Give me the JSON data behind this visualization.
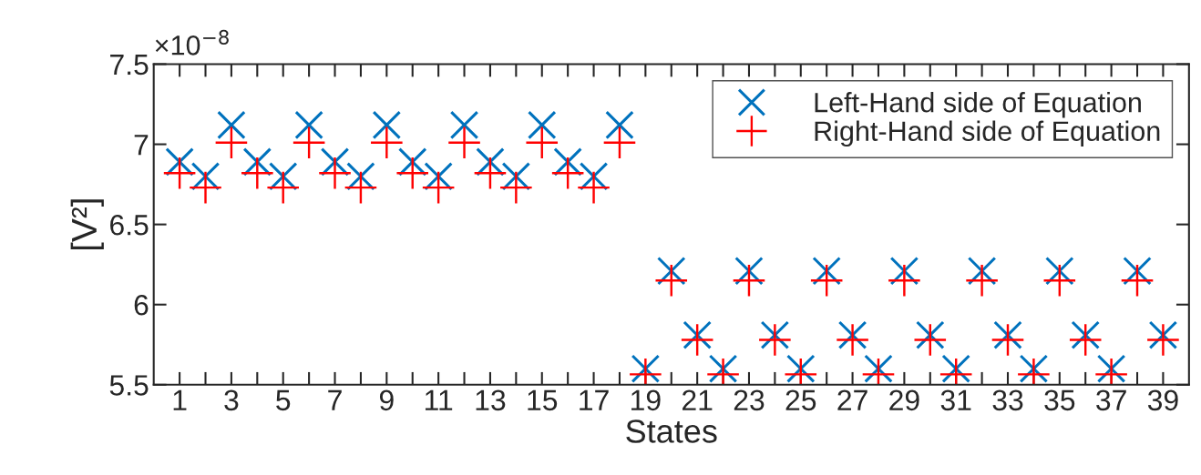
{
  "chart_data": {
    "type": "scatter",
    "xlabel": "States",
    "ylabel": "[V²]",
    "annotations": [
      "×10$^{−8}$"
    ],
    "x": [
      1,
      2,
      3,
      4,
      5,
      6,
      7,
      8,
      9,
      10,
      11,
      12,
      13,
      14,
      15,
      16,
      17,
      18,
      19,
      20,
      21,
      22,
      23,
      24,
      25,
      26,
      27,
      28,
      29,
      30,
      31,
      32,
      33,
      34,
      35,
      36,
      37,
      38,
      39
    ],
    "series": [
      {
        "name": "Left-Hand side of Equation",
        "color": "#0072bd",
        "marker": "cross",
        "values": [
          6.89,
          6.8,
          7.12,
          6.89,
          6.8,
          7.12,
          6.89,
          6.8,
          7.12,
          6.89,
          6.8,
          7.12,
          6.89,
          6.8,
          7.12,
          6.89,
          6.8,
          7.12,
          5.6,
          6.21,
          5.81,
          5.6,
          6.21,
          5.81,
          5.6,
          6.21,
          5.81,
          5.6,
          6.21,
          5.81,
          5.6,
          6.21,
          5.81,
          5.6,
          6.21,
          5.81,
          5.6,
          6.21,
          5.81
        ]
      },
      {
        "name": "Right-Hand side of Equation",
        "color": "#ff0000",
        "marker": "cross",
        "values": [
          6.82,
          6.73,
          7.01,
          6.82,
          6.73,
          7.01,
          6.82,
          6.73,
          7.01,
          6.82,
          6.73,
          7.01,
          6.82,
          6.73,
          7.01,
          6.82,
          6.73,
          7.01,
          5.565,
          6.15,
          5.78,
          5.565,
          6.15,
          5.78,
          5.565,
          6.15,
          5.78,
          5.565,
          6.15,
          5.78,
          5.565,
          6.15,
          5.78,
          5.565,
          6.15,
          5.78,
          5.565,
          6.15,
          5.78
        ]
      }
    ],
    "xlim": [
      0,
      40
    ],
    "xticks": [
      1,
      {
        "value": 2,
        "label": null
      },
      3,
      {
        "value": 4,
        "label": null
      },
      5,
      {
        "value": 6,
        "label": null
      },
      7,
      {
        "value": 8,
        "label": null
      },
      9,
      {
        "value": 10,
        "label": null
      },
      11,
      {
        "value": 12,
        "label": null
      },
      13,
      {
        "value": 14,
        "label": null
      },
      15,
      {
        "value": 16,
        "label": null
      },
      17,
      {
        "value": 18,
        "label": null
      },
      19,
      {
        "value": 20,
        "label": null
      },
      21,
      {
        "value": 22,
        "label": null
      },
      23,
      {
        "value": 24,
        "label": null
      },
      25,
      {
        "value": 26,
        "label": null
      },
      27,
      {
        "value": 28,
        "label": null
      },
      29,
      {
        "value": 30,
        "label": null
      },
      31,
      {
        "value": 32,
        "label": null
      },
      33,
      {
        "value": 34,
        "label": null
      },
      35,
      {
        "value": 36,
        "label": null
      },
      37,
      {
        "value": 38,
        "label": null
      },
      39
    ],
    "ylim": [
      5.5,
      7.5
    ],
    "yticks": [
      5.5,
      6,
      6.5,
      7,
      7.5
    ],
    "grid": false,
    "legend": "top right"
  }
}
